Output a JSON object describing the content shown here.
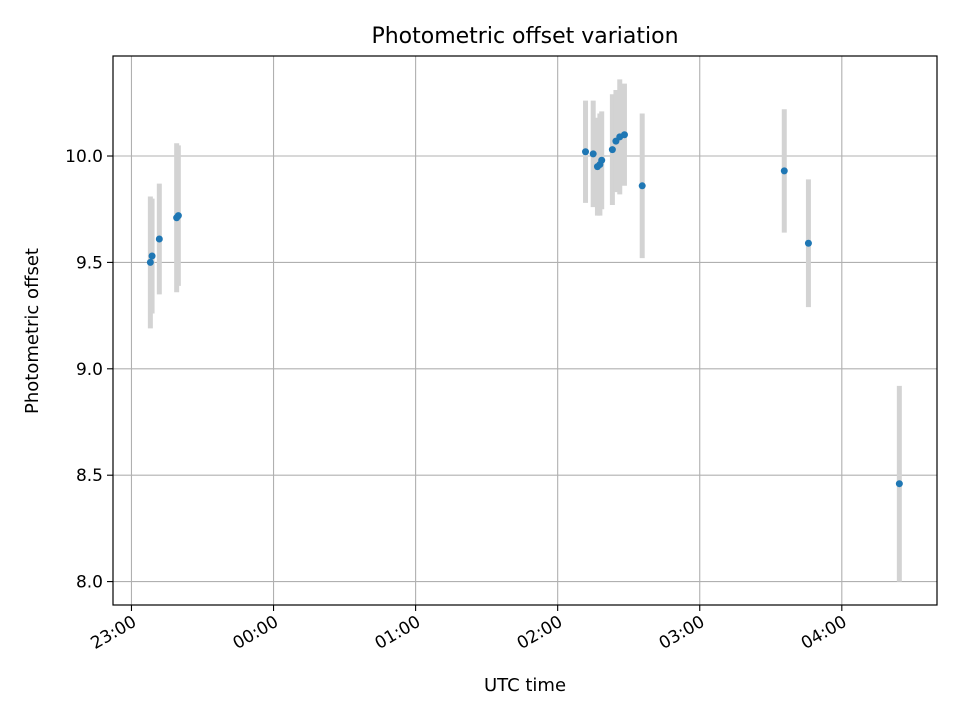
{
  "chart_data": {
    "type": "scatter",
    "title": "Photometric offset variation",
    "xlabel": "UTC time",
    "ylabel": "Photometric offset",
    "x_ticks": [
      "23:00",
      "00:00",
      "01:00",
      "02:00",
      "03:00",
      "04:00"
    ],
    "y_ticks": [
      "8.0",
      "8.5",
      "9.0",
      "9.5",
      "10.0"
    ],
    "xlim_hours": [
      22.87,
      28.67
    ],
    "ylim": [
      7.89,
      10.47
    ],
    "grid": true,
    "colors": {
      "point": "#1f77b4",
      "errorbar": "#d3d3d3",
      "grid": "#b0b0b0"
    },
    "points": [
      {
        "t": 23.133,
        "y": 9.5,
        "err": 0.31
      },
      {
        "t": 23.145,
        "y": 9.53,
        "err": 0.27
      },
      {
        "t": 23.196,
        "y": 9.61,
        "err": 0.26
      },
      {
        "t": 23.318,
        "y": 9.71,
        "err": 0.35
      },
      {
        "t": 23.33,
        "y": 9.72,
        "err": 0.33
      },
      {
        "t": 26.196,
        "y": 10.02,
        "err": 0.24
      },
      {
        "t": 26.25,
        "y": 10.01,
        "err": 0.25
      },
      {
        "t": 26.28,
        "y": 9.95,
        "err": 0.23
      },
      {
        "t": 26.297,
        "y": 9.96,
        "err": 0.24
      },
      {
        "t": 26.31,
        "y": 9.98,
        "err": 0.23
      },
      {
        "t": 26.385,
        "y": 10.03,
        "err": 0.26
      },
      {
        "t": 26.41,
        "y": 10.07,
        "err": 0.24
      },
      {
        "t": 26.437,
        "y": 10.09,
        "err": 0.27
      },
      {
        "t": 26.47,
        "y": 10.1,
        "err": 0.24
      },
      {
        "t": 26.595,
        "y": 9.86,
        "err": 0.34
      },
      {
        "t": 27.595,
        "y": 9.93,
        "err": 0.29
      },
      {
        "t": 27.765,
        "y": 9.59,
        "err": 0.3
      },
      {
        "t": 28.405,
        "y": 8.46,
        "err": 0.46
      }
    ]
  }
}
